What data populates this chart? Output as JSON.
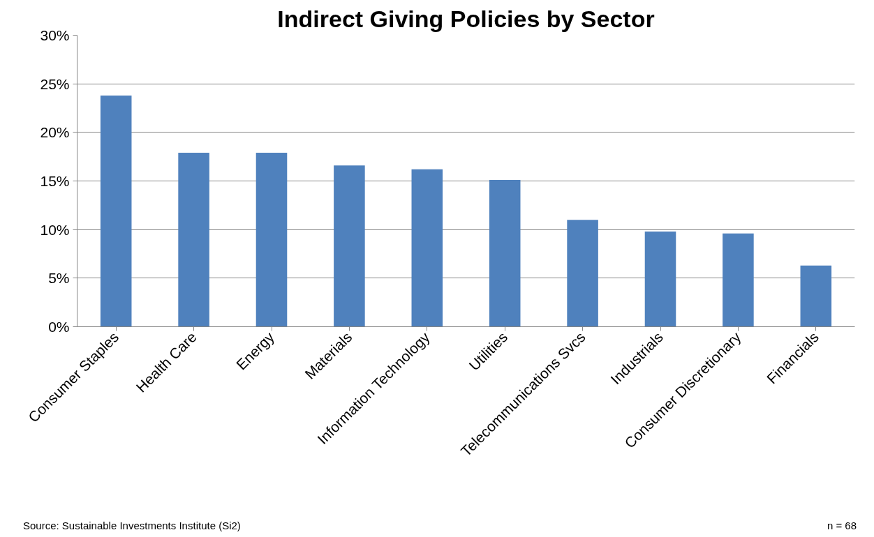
{
  "chart_data": {
    "type": "bar",
    "title": "Indirect Giving Policies by Sector",
    "categories": [
      "Consumer Staples",
      "Health Care",
      "Energy",
      "Materials",
      "Information Technology",
      "Utilities",
      "Telecommunications Svcs",
      "Industrials",
      "Consumer Discretionary",
      "Financials"
    ],
    "values": [
      23.8,
      17.9,
      17.9,
      16.6,
      16.2,
      15.1,
      11.0,
      9.8,
      9.6,
      6.3
    ],
    "color": "#4f81bd",
    "ylim": [
      0,
      30
    ],
    "yticks": [
      {
        "value": 0,
        "label": "0%"
      },
      {
        "value": 5,
        "label": "5%"
      },
      {
        "value": 10,
        "label": "10%"
      },
      {
        "value": 15,
        "label": "15%"
      },
      {
        "value": 20,
        "label": "20%"
      },
      {
        "value": 25,
        "label": "25%"
      },
      {
        "value": 30,
        "label": "30%"
      }
    ],
    "grid": "y",
    "annotations": [
      "Source: Sustainable Investments Institute (Si2)",
      "n = 68"
    ]
  }
}
